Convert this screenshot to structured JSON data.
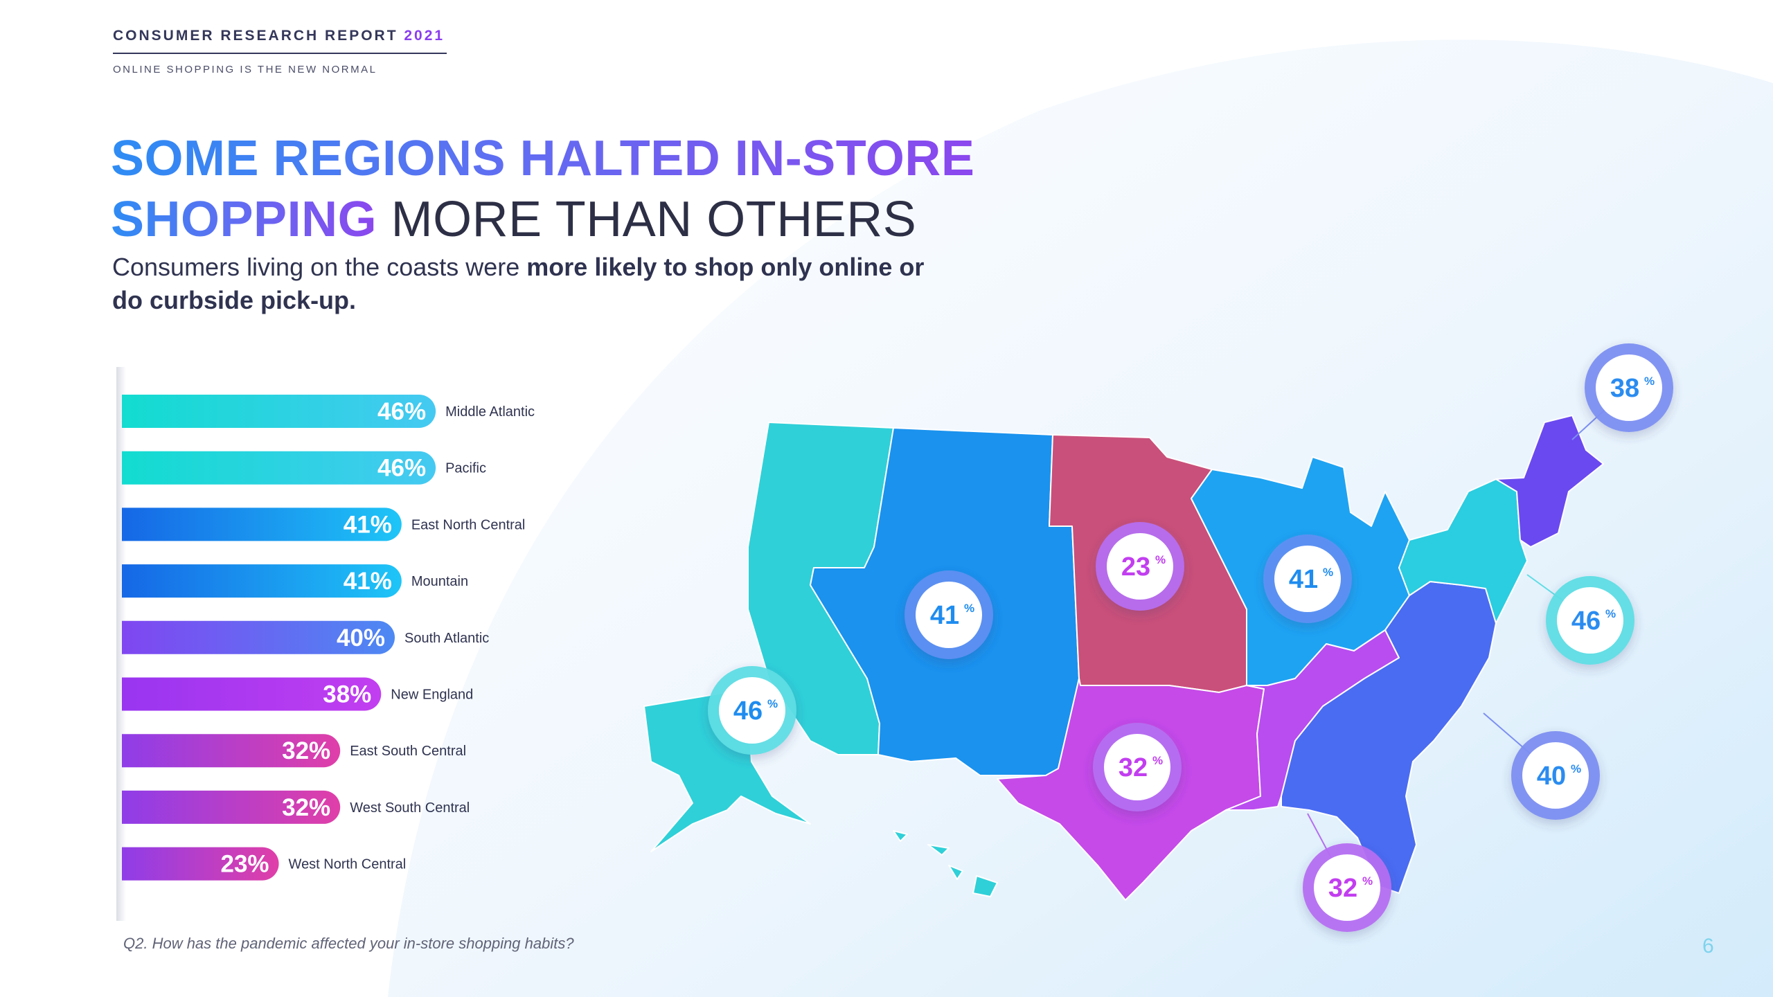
{
  "header": {
    "report_title": "CONSUMER RESEARCH REPORT",
    "report_year": "2021",
    "report_subtitle": "ONLINE SHOPPING IS THE NEW NORMAL"
  },
  "headline": {
    "line1_bold": "SOME REGIONS HALTED IN-STORE",
    "line2_bold": "SHOPPING",
    "line2_light": "MORE THAN OTHERS"
  },
  "subtext": {
    "normal": "Consumers living on the coasts were",
    "bold": "more likely to shop only online or do curbside pick-up."
  },
  "footnote": "Q2. How has the pandemic affected your in-store shopping habits?",
  "page_number": "6",
  "chart_data": {
    "type": "bar",
    "orientation": "horizontal",
    "categories": [
      "Middle Atlantic",
      "Pacific",
      "East North Central",
      "Mountain",
      "South Atlantic",
      "New England",
      "East South Central",
      "West South Central",
      "West North Central"
    ],
    "values": [
      46,
      46,
      41,
      41,
      40,
      38,
      32,
      32,
      23
    ],
    "value_suffix": "%",
    "colors": {
      "teal_start": "#12dcd0",
      "teal_end": "#45c9f2",
      "blue_start": "#1667e6",
      "blue_end": "#1ec5f7",
      "violet_start": "#8046f1",
      "violet_end": "#4d89f3",
      "purple_start": "#9935f0",
      "purple_end": "#c23ef0",
      "magenta_start": "#8f3de8",
      "magenta_end": "#e03fa8"
    },
    "bar_color_groups": [
      "teal",
      "teal",
      "blue",
      "blue",
      "violet",
      "purple",
      "magenta",
      "magenta",
      "magenta"
    ]
  },
  "map": {
    "region_colors": {
      "Pacific": "#2fd0d8",
      "Mountain": "#1a92ee",
      "West North Central": "#c9507a",
      "West South Central": "#c54ae8",
      "East North Central": "#1ea3f2",
      "East South Central": "#b94df0",
      "South Atlantic": "#4a6cf2",
      "Middle Atlantic": "#2bcde0",
      "New England": "#6a49f0"
    },
    "callouts": [
      {
        "label": "38",
        "suffix": "%",
        "region": "New England"
      },
      {
        "label": "46",
        "suffix": "%",
        "region": "Middle Atlantic"
      },
      {
        "label": "40",
        "suffix": "%",
        "region": "South Atlantic"
      },
      {
        "label": "32",
        "suffix": "%",
        "region": "East South Central"
      },
      {
        "label": "32",
        "suffix": "%",
        "region": "West South Central"
      },
      {
        "label": "23",
        "suffix": "%",
        "region": "West North Central"
      },
      {
        "label": "41",
        "suffix": "%",
        "region": "East North Central"
      },
      {
        "label": "41",
        "suffix": "%",
        "region": "Mountain"
      },
      {
        "label": "46",
        "suffix": "%",
        "region": "Pacific"
      }
    ]
  }
}
